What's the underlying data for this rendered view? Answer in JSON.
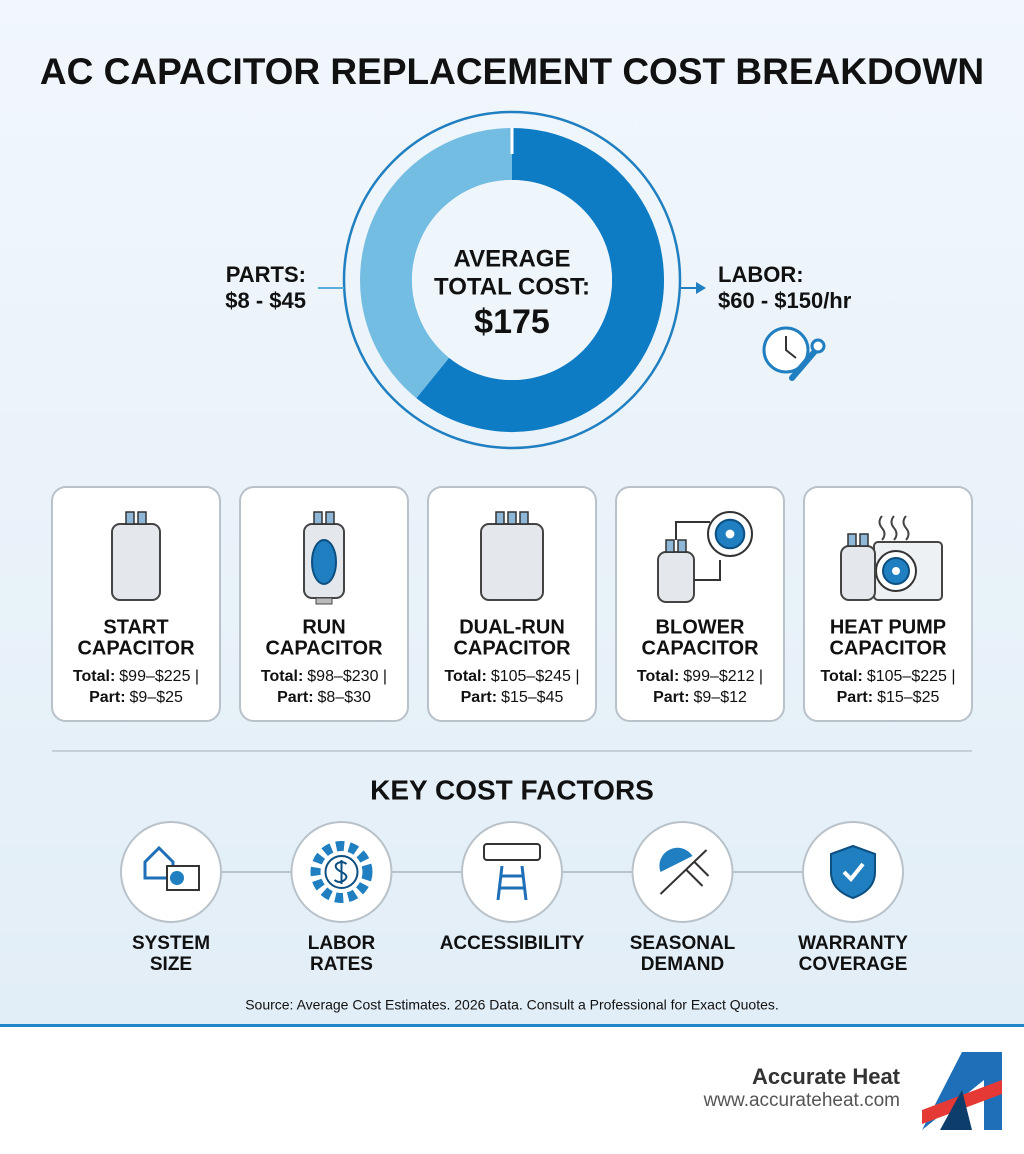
{
  "header": {
    "title": "AC CAPACITOR REPLACEMENT COST BREAKDOWN"
  },
  "summary": {
    "parts_label": "PARTS:",
    "parts_value": "$8 - $45",
    "center_lines": [
      "AVERAGE",
      "TOTAL COST:"
    ],
    "center_value": "$175",
    "labor_label": "LABOR:",
    "labor_value": "$60 - $150/hr"
  },
  "cards": [
    {
      "name": [
        "START",
        "CAPACITOR"
      ],
      "total_label": "Total:",
      "total": "$99–$225 |",
      "part_label": "Part:",
      "part": "$9–$25"
    },
    {
      "name": [
        "RUN",
        "CAPACITOR"
      ],
      "total_label": "Total:",
      "total": "$98–$230 |",
      "part_label": "Part:",
      "part": "$8–$30"
    },
    {
      "name": [
        "DUAL-RUN",
        "CAPACITOR"
      ],
      "total_label": "Total:",
      "total": "$105–$245 |",
      "part_label": "Part:",
      "part": "$15–$45"
    },
    {
      "name": [
        "BLOWER",
        "CAPACITOR"
      ],
      "total_label": "Total:",
      "total": "$99–$212 |",
      "part_label": "Part:",
      "part": "$9–$12"
    },
    {
      "name": [
        "HEAT PUMP",
        "CAPACITOR"
      ],
      "total_label": "Total:",
      "total": "$105–$225 |",
      "part_label": "Part:",
      "part": "$15–$25"
    }
  ],
  "factors": {
    "title": "KEY COST FACTORS",
    "items": [
      [
        "SYSTEM",
        "SIZE"
      ],
      [
        "LABOR",
        "RATES"
      ],
      [
        "ACCESSIBILITY"
      ],
      [
        "SEASONAL",
        "DEMAND"
      ],
      [
        "WARRANTY",
        "COVERAGE"
      ]
    ]
  },
  "source": "Source: Average Cost Estimates. 2026 Data. Consult a Professional for Exact Quotes.",
  "footer": {
    "brand": "Accurate Heat",
    "url": "www.accurateheat.com"
  }
}
